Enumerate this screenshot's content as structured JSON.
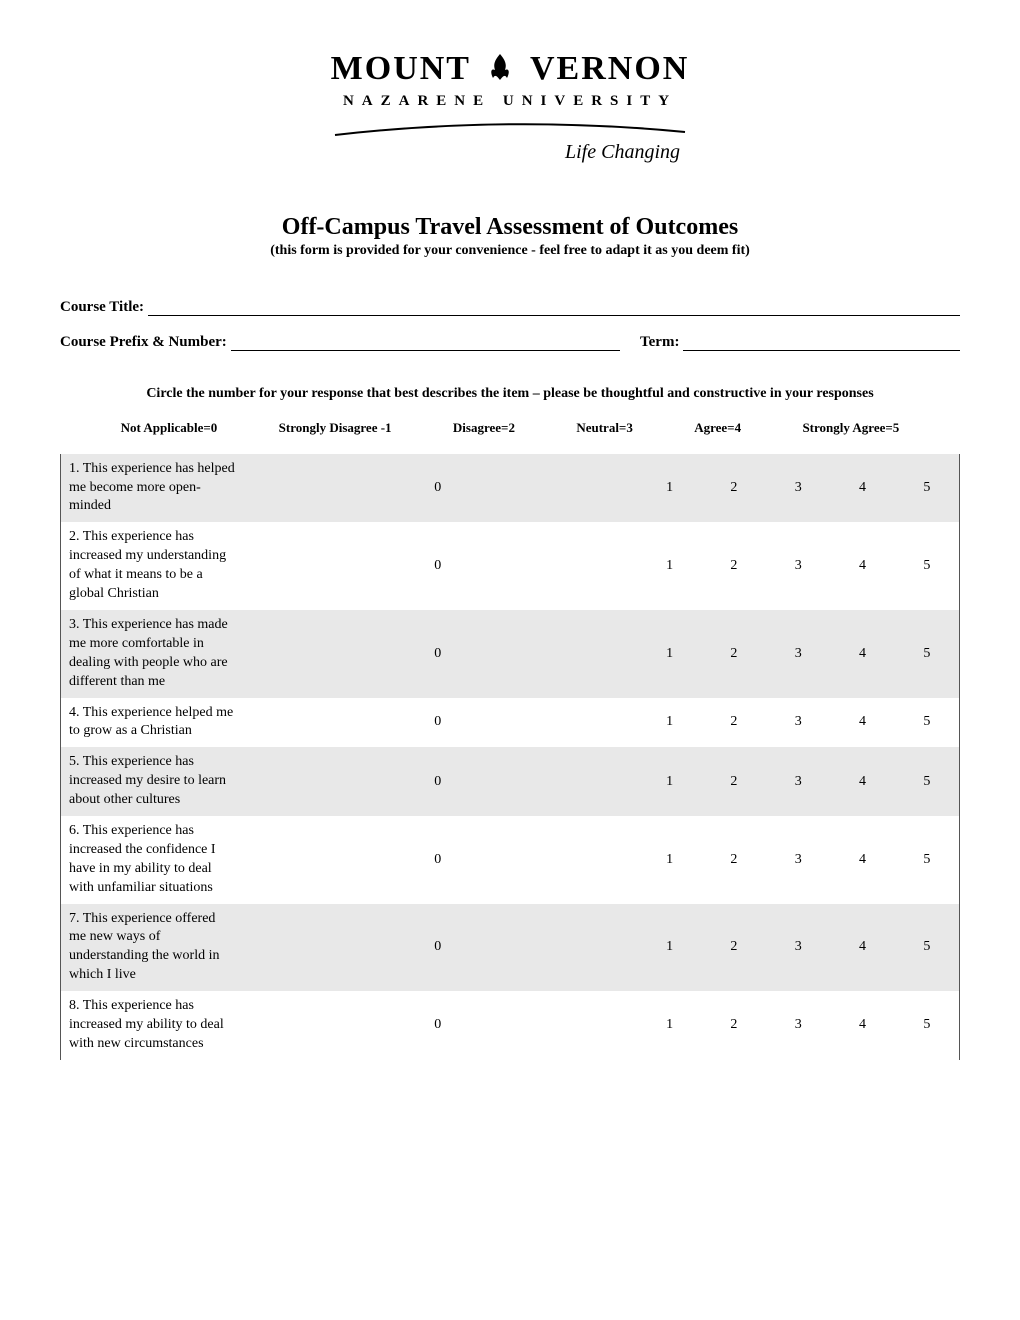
{
  "logo": {
    "main_left": "MOUNT",
    "main_right": "VERNON",
    "sub": "NAZARENE  UNIVERSITY",
    "tagline": "Life Changing"
  },
  "title": "Off-Campus Travel Assessment of Outcomes",
  "subtitle": "(this form is provided for your convenience - feel free to adapt it as you deem fit)",
  "fields": {
    "course_title_label": "Course Title:",
    "course_prefix_label": "Course Prefix & Number:",
    "term_label": "Term:"
  },
  "instructions": "Circle the number for your response that best describes the item – please be thoughtful and constructive in your responses",
  "legend": {
    "na": "Not Applicable=0",
    "sd": "Strongly Disagree -1",
    "d": "Disagree=2",
    "n": "Neutral=3",
    "a": "Agree=4",
    "sa": "Strongly Agree=5"
  },
  "scale_values": [
    "0",
    "1",
    "2",
    "3",
    "4",
    "5"
  ],
  "questions": [
    "1. This experience has helped me become more open-minded",
    "2. This experience has increased my understanding of what it means to be a global Christian",
    "3. This experience has made me more comfortable in dealing with people who are different than me",
    "4. This experience helped me to grow as a Christian",
    "5. This experience has increased my desire to learn about other cultures",
    "6. This experience has increased the confidence I have in my ability to deal with unfamiliar situations",
    "7. This experience offered me new ways of understanding the world in which I live",
    "8. This experience has increased my ability to deal with new circumstances"
  ],
  "colors": {
    "shaded_row": "#e8e8e8",
    "text": "#000000",
    "bg": "#ffffff"
  }
}
